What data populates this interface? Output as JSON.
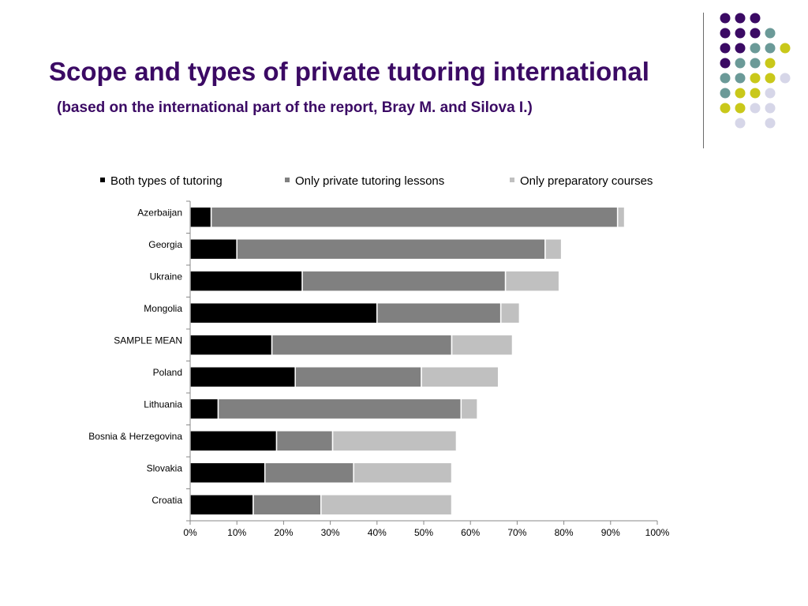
{
  "slide": {
    "title": "Scope and types of private tutoring international",
    "subtitle": "(based on the international part of the report, Bray M. and Silova I.)"
  },
  "decoration": {
    "dot_colors": {
      "purple": "#3b0a64",
      "teal": "#6b9a98",
      "yellow": "#c9c81a",
      "lavender": "#d6d6e8"
    },
    "dot_rows": [
      [
        "purple",
        "purple",
        "purple",
        null,
        null
      ],
      [
        "purple",
        "purple",
        "purple",
        "teal",
        null
      ],
      [
        "purple",
        "purple",
        "teal",
        "teal",
        "yellow"
      ],
      [
        "purple",
        "teal",
        "teal",
        "yellow",
        null
      ],
      [
        "teal",
        "teal",
        "yellow",
        "yellow",
        "lavender"
      ],
      [
        "teal",
        "yellow",
        "yellow",
        "lavender",
        null
      ],
      [
        "yellow",
        "yellow",
        "lavender",
        "lavender",
        null
      ],
      [
        null,
        "lavender",
        null,
        "lavender",
        null
      ]
    ]
  },
  "chart_data": {
    "type": "bar",
    "orientation": "horizontal",
    "stacked": true,
    "categories": [
      "Azerbaijan",
      "Georgia",
      "Ukraine",
      "Mongolia",
      "SAMPLE MEAN",
      "Poland",
      "Lithuania",
      "Bosnia & Herzegovina",
      "Slovakia",
      "Croatia"
    ],
    "series": [
      {
        "name": "Both types of tutoring",
        "color": "#000000",
        "values": [
          4.5,
          10,
          24,
          40,
          17.5,
          22.5,
          6,
          18.5,
          16,
          13.5
        ]
      },
      {
        "name": "Only private tutoring lessons",
        "color": "#808080",
        "values": [
          87,
          66,
          43.5,
          26.5,
          38.5,
          27,
          52,
          12,
          19,
          14.5
        ]
      },
      {
        "name": "Only preparatory courses",
        "color": "#c0c0c0",
        "values": [
          1.5,
          3.5,
          11.5,
          4,
          13,
          16.5,
          3.5,
          26.5,
          21,
          28
        ]
      }
    ],
    "xlim": [
      0,
      100
    ],
    "x_ticks": [
      "0%",
      "10%",
      "20%",
      "30%",
      "40%",
      "50%",
      "60%",
      "70%",
      "80%",
      "90%",
      "100%"
    ],
    "legend_position": "top",
    "grid": false
  }
}
